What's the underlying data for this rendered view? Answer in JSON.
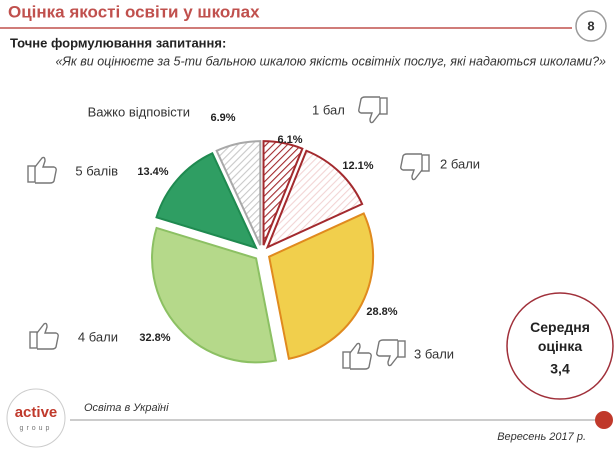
{
  "header": {
    "title": "Оцінка якості освіти у школах",
    "page_number": 8
  },
  "question_label": "Точне формулювання запитання:",
  "question": "«Як ви оцінюєте за 5-ти бальною шкалою якість освітніх послуг, які надаються школами?»",
  "chart_data": {
    "type": "pie",
    "categories": [
      "1 бал",
      "2 бали",
      "3 бали",
      "4 бали",
      "5 балів",
      "Важко відповісти"
    ],
    "values": [
      6.1,
      12.1,
      28.8,
      32.8,
      13.4,
      6.9
    ],
    "value_labels": [
      "6.1%",
      "12.1%",
      "28.8%",
      "32.8%",
      "13.4%",
      "6.9%"
    ],
    "colors": [
      "#a32a2e",
      "#f2d4d4",
      "#f1cf4c",
      "#b5d98a",
      "#2f9e63",
      "#c9c9c9"
    ],
    "borders": [
      "#a32a2e",
      "#a32a2e",
      "#e08a1e",
      "#8cc063",
      "#1f8a50",
      "#a8a8a8"
    ],
    "hatched": [
      true,
      true,
      false,
      false,
      false,
      true
    ]
  },
  "summary": {
    "label": "Середня оцінка",
    "value": "3,4"
  },
  "footer": {
    "source": "Освіта в Україні",
    "date": "Вересень 2017 р.",
    "logo": "active",
    "logo_sub": "group"
  }
}
